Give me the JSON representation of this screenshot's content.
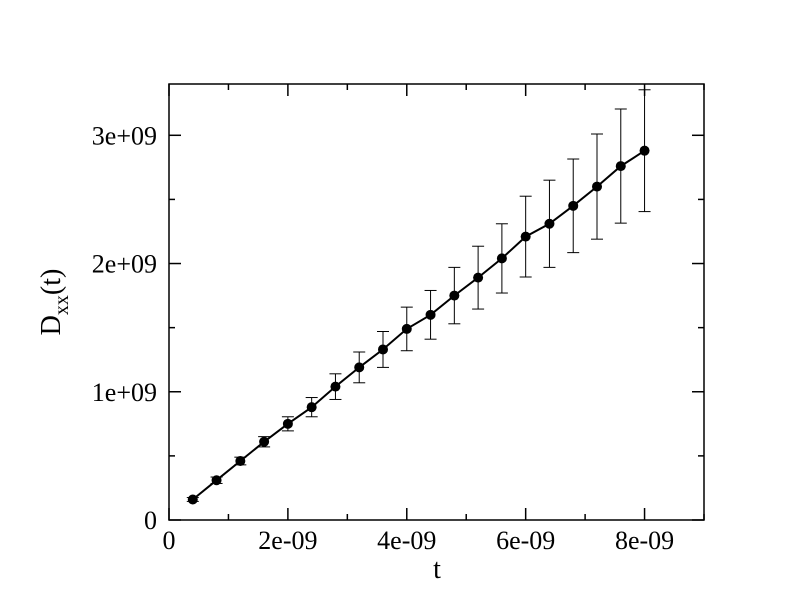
{
  "chart_data": {
    "type": "line",
    "title": "",
    "xlabel": "t",
    "ylabel_main": "D",
    "ylabel_sub": "xx",
    "ylabel_suffix": "(t)",
    "xlim": [
      0,
      9e-09
    ],
    "ylim": [
      0,
      3400000000.0
    ],
    "x_ticks": [
      0,
      2e-09,
      4e-09,
      6e-09,
      8e-09
    ],
    "x_tick_labels": [
      "0",
      "2e-09",
      "4e-09",
      "6e-09",
      "8e-09"
    ],
    "y_ticks": [
      0,
      1000000000.0,
      2000000000.0,
      3000000000.0
    ],
    "y_tick_labels": [
      "0",
      "1e+09",
      "2e+09",
      "3e+09"
    ],
    "grid": false,
    "series": [
      {
        "x": [
          4e-10,
          8e-10,
          1.2e-09,
          1.6e-09,
          2e-09,
          2.4e-09,
          2.8e-09,
          3.2e-09,
          3.6e-09,
          4e-09,
          4.4e-09,
          4.8e-09,
          5.2e-09,
          5.6e-09,
          6e-09,
          6.4e-09,
          6.8e-09,
          7.2e-09,
          7.6e-09,
          8e-09
        ],
        "y": [
          160000000.0,
          310000000.0,
          460000000.0,
          610000000.0,
          750000000.0,
          880000000.0,
          1040000000.0,
          1190000000.0,
          1330000000.0,
          1490000000.0,
          1600000000.0,
          1750000000.0,
          1890000000.0,
          2040000000.0,
          2210000000.0,
          2310000000.0,
          2450000000.0,
          2600000000.0,
          2760000000.0,
          2880000000.0
        ],
        "err": [
          15000000.0,
          25000000.0,
          30000000.0,
          40000000.0,
          55000000.0,
          75000000.0,
          100000000.0,
          120000000.0,
          140000000.0,
          170000000.0,
          190000000.0,
          220000000.0,
          245000000.0,
          270000000.0,
          315000000.0,
          340000000.0,
          365000000.0,
          410000000.0,
          445000000.0,
          475000000.0
        ]
      }
    ]
  }
}
